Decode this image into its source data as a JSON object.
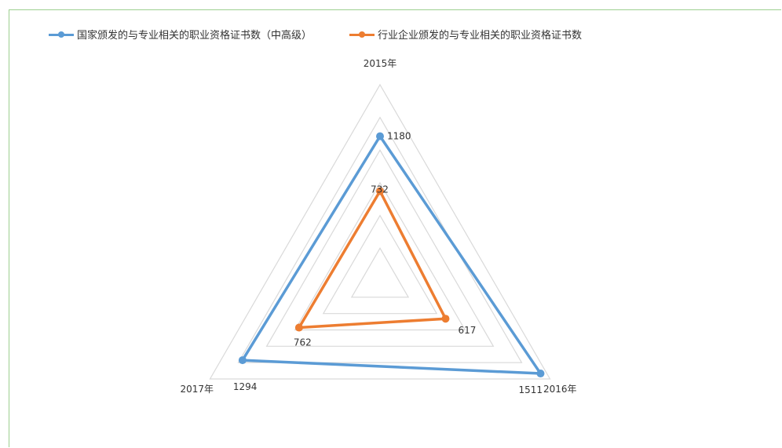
{
  "chart_data": {
    "type": "radar",
    "categories": [
      "2015年",
      "2016年",
      "2017年"
    ],
    "series": [
      {
        "name": "国家颁发的与专业相关的职业资格证书数（中高级）",
        "values": [
          1180,
          1511,
          1294
        ],
        "color": "#5b9bd5"
      },
      {
        "name": "行业企业颁发的与专业相关的职业资格证书数",
        "values": [
          732,
          617,
          762
        ],
        "color": "#ed7d31"
      }
    ],
    "rmax": 1600,
    "rings": 6,
    "grid": true,
    "legend_position": "top"
  }
}
